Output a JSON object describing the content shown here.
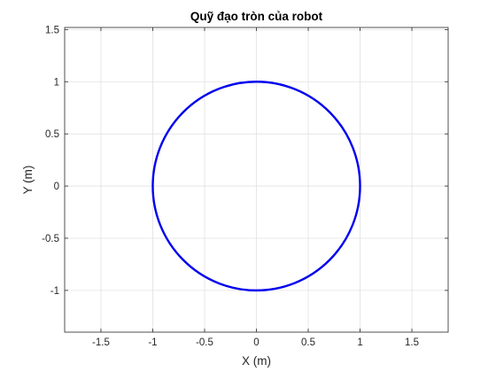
{
  "chart_data": {
    "type": "line",
    "title": "Quỹ đạo tròn của robot",
    "xlabel": "X (m)",
    "ylabel": "Y (m)",
    "xlim": [
      -1.85,
      1.85
    ],
    "ylim": [
      -1.4,
      1.52
    ],
    "xticks": [
      -1.5,
      -1,
      -0.5,
      0,
      0.5,
      1,
      1.5
    ],
    "xtick_labels": [
      "-1.5",
      "-1",
      "-0.5",
      "0",
      "0.5",
      "1",
      "1.5"
    ],
    "yticks": [
      -1,
      -0.5,
      0,
      0.5,
      1,
      1.5
    ],
    "ytick_labels": [
      "-1",
      "-0.5",
      "0",
      "0.5",
      "1",
      "1.5"
    ],
    "grid": true,
    "series": [
      {
        "shape": "circle",
        "center": [
          0,
          0
        ],
        "radius": 1,
        "color": "#0000ee"
      }
    ]
  }
}
